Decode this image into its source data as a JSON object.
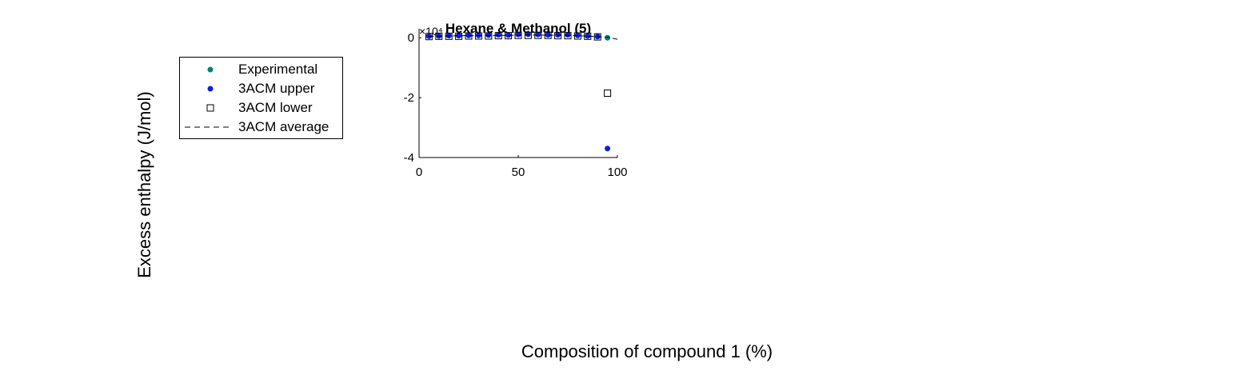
{
  "figure": {
    "xlabel": "Composition of compound 1 (%)",
    "ylabel": "Excess enthalpy (J/mol)"
  },
  "legend": {
    "items": [
      {
        "label": "Experimental",
        "symbol": "dot",
        "color": "#00807a"
      },
      {
        "label": "3ACM upper",
        "symbol": "dot",
        "color": "#0a1de6"
      },
      {
        "label": "3ACM lower",
        "symbol": "square",
        "color": "#000000"
      },
      {
        "label": "3ACM average",
        "symbol": "dashed-line",
        "color": "#000000"
      }
    ]
  },
  "chart_data": {
    "type": "scatter",
    "title": "Hexane & Methanol (5)",
    "xlim": [
      0,
      100
    ],
    "ylim": [
      -4,
      0.3
    ],
    "xticks": [
      "0",
      "50",
      "100"
    ],
    "yticks": [
      "0",
      "-2",
      "-4"
    ],
    "exponent_label": "×10⁴",
    "grid": false,
    "series": [
      {
        "name": "Experimental",
        "marker": "dot",
        "color": "#00807a",
        "x": [
          95
        ],
        "y": [
          0
        ]
      },
      {
        "name": "3ACM upper",
        "marker": "dot",
        "color": "#0a1de6",
        "x": [
          5,
          10,
          15,
          20,
          25,
          30,
          35,
          40,
          45,
          50,
          55,
          60,
          65,
          70,
          75,
          80,
          85,
          90,
          95
        ],
        "y": [
          0.05,
          0.06,
          0.07,
          0.07,
          0.08,
          0.08,
          0.09,
          0.1,
          0.09,
          0.11,
          0.12,
          0.11,
          0.1,
          0.1,
          0.1,
          0.08,
          0.06,
          0.04,
          -3.7
        ]
      },
      {
        "name": "3ACM lower",
        "marker": "square",
        "color": "#000000",
        "x": [
          5,
          10,
          15,
          20,
          25,
          30,
          35,
          40,
          45,
          50,
          55,
          60,
          65,
          70,
          75,
          80,
          85,
          90,
          95
        ],
        "y": [
          0.04,
          0.05,
          0.05,
          0.05,
          0.06,
          0.06,
          0.06,
          0.07,
          0.07,
          0.08,
          0.08,
          0.08,
          0.08,
          0.07,
          0.07,
          0.06,
          0.05,
          0.03,
          -1.85
        ]
      },
      {
        "name": "3ACM average",
        "marker": "dashed-line",
        "color": "#000000",
        "x": [
          5,
          15,
          25,
          35,
          45,
          55,
          65,
          75,
          85,
          95,
          100
        ],
        "y": [
          0.045,
          0.06,
          0.07,
          0.075,
          0.08,
          0.09,
          0.085,
          0.08,
          0.055,
          0.02,
          -0.05
        ]
      }
    ]
  }
}
